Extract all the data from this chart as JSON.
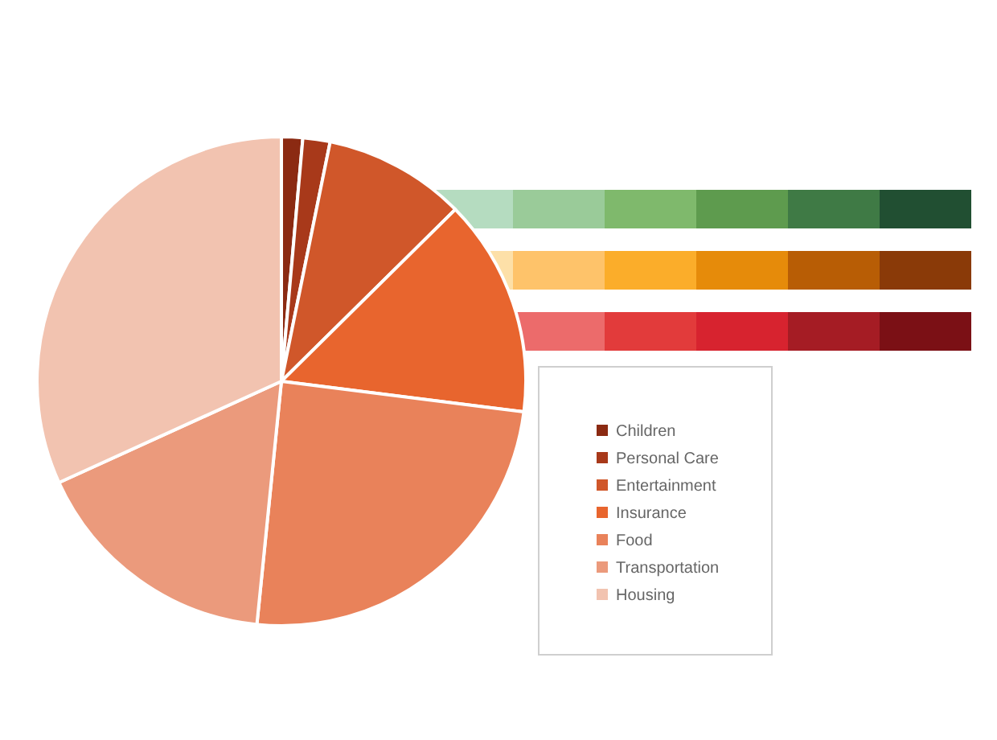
{
  "chart_data": {
    "type": "pie",
    "categories": [
      "Children",
      "Personal Care",
      "Entertainment",
      "Insurance",
      "Food",
      "Transportation",
      "Housing"
    ],
    "values": [
      1.4,
      1.8,
      9.4,
      14.4,
      24.6,
      16.6,
      31.8
    ],
    "colors": [
      "#8b2a12",
      "#a8391a",
      "#d0572a",
      "#e8652e",
      "#e9825a",
      "#eb9a7c",
      "#f2c3b0"
    ],
    "legend": "right"
  }
}
